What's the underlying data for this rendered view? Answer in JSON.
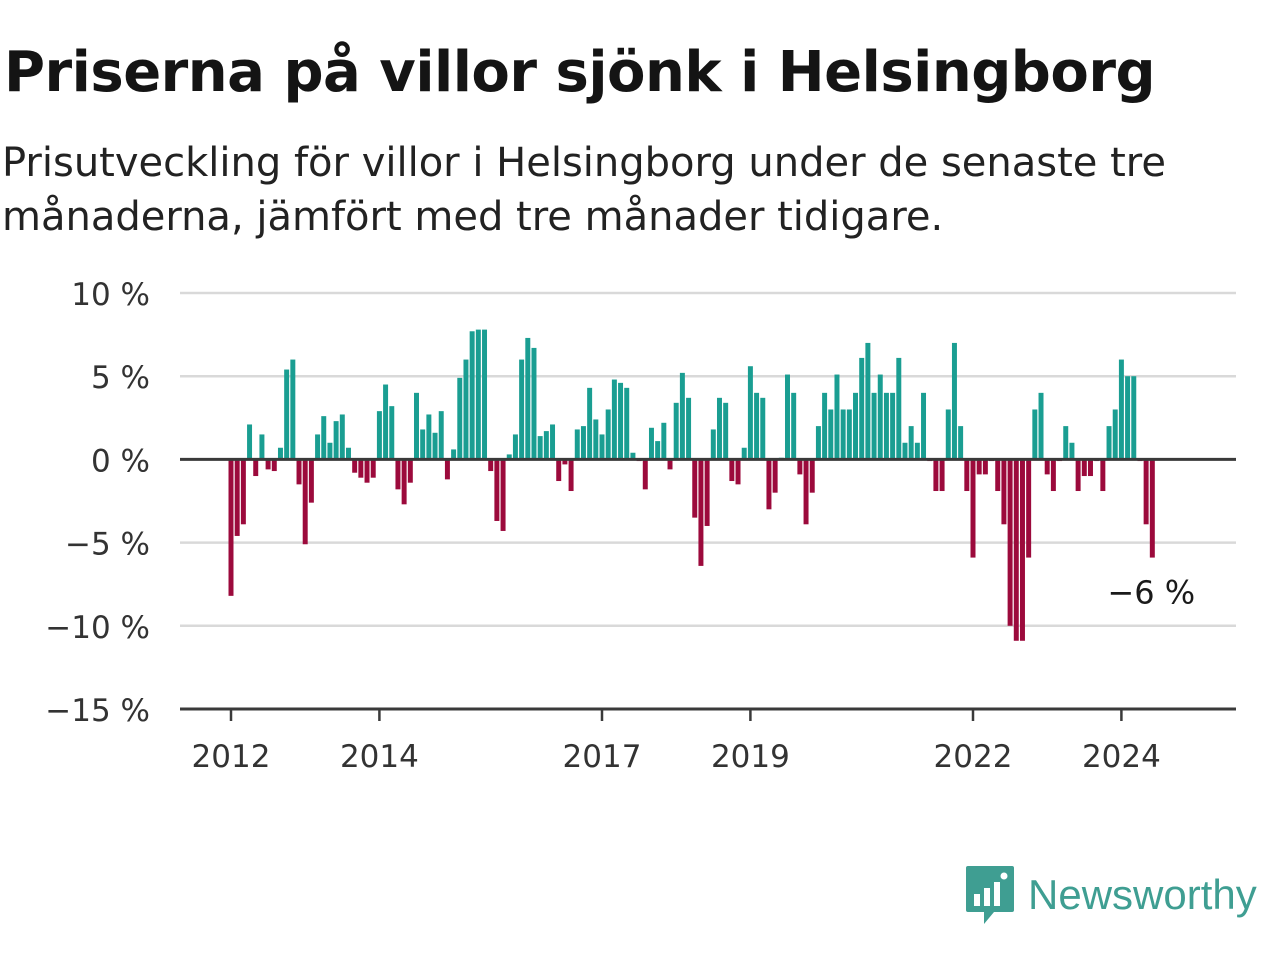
{
  "header": {
    "title": "Priserna på villor sjönk i Helsingborg",
    "subtitle": "Prisutveckling för villor i Helsingborg under de senaste tre månaderna, jämfört med tre månader tidigare."
  },
  "chart_data": {
    "type": "bar",
    "ylim": [
      -15,
      10
    ],
    "y_ticks": [
      10,
      5,
      0,
      -5,
      -10,
      -15
    ],
    "y_tick_labels": [
      "10 %",
      "5 %",
      "0 %",
      "−5 %",
      "−10 %",
      "−15 %"
    ],
    "x_ticks": [
      {
        "year": 2012,
        "label": "2012"
      },
      {
        "year": 2014,
        "label": "2014"
      },
      {
        "year": 2017,
        "label": "2017"
      },
      {
        "year": 2019,
        "label": "2019"
      },
      {
        "year": 2022,
        "label": "2022"
      },
      {
        "year": 2024,
        "label": "2024"
      }
    ],
    "start": "2012-01",
    "values": [
      -8.2,
      -4.6,
      -3.9,
      2.1,
      -1.0,
      1.5,
      -0.6,
      -0.7,
      0.7,
      5.4,
      6.0,
      -1.5,
      -5.1,
      -2.6,
      1.5,
      2.6,
      1.0,
      2.3,
      2.7,
      0.7,
      -0.8,
      -1.1,
      -1.4,
      -1.1,
      2.9,
      4.5,
      3.2,
      -1.8,
      -2.7,
      -1.4,
      4.0,
      1.8,
      2.7,
      1.6,
      2.9,
      -1.2,
      0.6,
      4.9,
      6.0,
      7.7,
      7.8,
      7.8,
      -0.7,
      -3.7,
      -4.3,
      0.3,
      1.5,
      6.0,
      7.3,
      6.7,
      1.4,
      1.7,
      2.1,
      -1.3,
      -0.3,
      -1.9,
      1.8,
      2.0,
      4.3,
      2.4,
      1.5,
      3.0,
      4.8,
      4.6,
      4.3,
      0.4,
      -0.1,
      -1.8,
      1.9,
      1.1,
      2.2,
      -0.6,
      3.4,
      5.2,
      3.7,
      -3.5,
      -6.4,
      -4.0,
      1.8,
      3.7,
      3.4,
      -1.3,
      -1.5,
      0.7,
      5.6,
      4.0,
      3.7,
      -3.0,
      -2.0,
      0.1,
      5.1,
      4.0,
      -0.9,
      -3.9,
      -2.0,
      2.0,
      4.0,
      3.0,
      5.1,
      3.0,
      3.0,
      4.0,
      6.1,
      7.0,
      4.0,
      5.1,
      4.0,
      4.0,
      6.1,
      1.0,
      2.0,
      1.0,
      4.0,
      -0.1,
      -1.9,
      -1.9,
      3.0,
      7.0,
      2.0,
      -1.9,
      -5.9,
      -0.9,
      -0.9,
      -0.1,
      -1.9,
      -3.9,
      -10.0,
      -10.9,
      -10.9,
      -5.9,
      3.0,
      4.0,
      -0.9,
      -1.9,
      -0.1,
      2.0,
      1.0,
      -1.9,
      -1.0,
      -1.0,
      -0.1,
      -1.9,
      2.0,
      3.0,
      6.0,
      5.0,
      5.0,
      -0.1,
      -3.9,
      -5.9
    ],
    "positive_color": "#1a9e92",
    "negative_color": "#9c0a3c",
    "last_label": "−6 %"
  },
  "branding": {
    "logo_icon": "newsworthy-chart-bubble-icon",
    "name": "Newsworthy",
    "color": "#3f9e92"
  }
}
